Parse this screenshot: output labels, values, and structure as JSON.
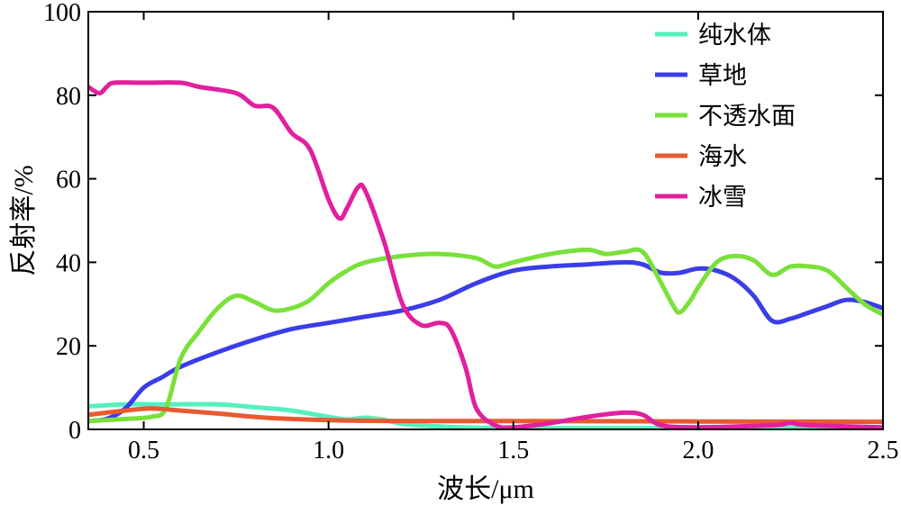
{
  "chart_data": {
    "type": "line",
    "title": "",
    "xlabel": "波长/μm",
    "ylabel": "反射率/%",
    "xlim": [
      0.35,
      2.5
    ],
    "ylim": [
      0,
      100
    ],
    "x_ticks": [
      0.5,
      1.0,
      1.5,
      2.0,
      2.5
    ],
    "x_tick_labels": [
      "0.5",
      "1.0",
      "1.5",
      "2.0",
      "2.5"
    ],
    "y_ticks": [
      0,
      20,
      40,
      60,
      80,
      100
    ],
    "y_tick_labels": [
      "0",
      "20",
      "40",
      "60",
      "80",
      "100"
    ],
    "grid": false,
    "legend_position": "top-right",
    "series": [
      {
        "name": "纯水体",
        "color": "#55f0c0",
        "points": [
          [
            0.35,
            5.5
          ],
          [
            0.45,
            6
          ],
          [
            0.55,
            6
          ],
          [
            0.7,
            6
          ],
          [
            0.8,
            5.3
          ],
          [
            0.9,
            4.5
          ],
          [
            1.0,
            3
          ],
          [
            1.05,
            2.4
          ],
          [
            1.1,
            2.8
          ],
          [
            1.15,
            2.3
          ],
          [
            1.2,
            1.3
          ],
          [
            1.3,
            0.7
          ],
          [
            1.4,
            0.4
          ],
          [
            1.6,
            0.3
          ],
          [
            2.0,
            0.3
          ],
          [
            2.5,
            0.3
          ]
        ]
      },
      {
        "name": "草地",
        "color": "#3a3de8",
        "points": [
          [
            0.35,
            2
          ],
          [
            0.4,
            2.5
          ],
          [
            0.45,
            5
          ],
          [
            0.5,
            10
          ],
          [
            0.55,
            12.5
          ],
          [
            0.6,
            15
          ],
          [
            0.7,
            18.5
          ],
          [
            0.8,
            21.5
          ],
          [
            0.9,
            24
          ],
          [
            1.0,
            25.5
          ],
          [
            1.1,
            27
          ],
          [
            1.2,
            28.5
          ],
          [
            1.3,
            31
          ],
          [
            1.4,
            35
          ],
          [
            1.5,
            38
          ],
          [
            1.6,
            39
          ],
          [
            1.7,
            39.5
          ],
          [
            1.8,
            40
          ],
          [
            1.85,
            39.5
          ],
          [
            1.9,
            37.5
          ],
          [
            1.95,
            37.5
          ],
          [
            2.0,
            38.5
          ],
          [
            2.05,
            38
          ],
          [
            2.1,
            36
          ],
          [
            2.15,
            32
          ],
          [
            2.2,
            26
          ],
          [
            2.25,
            26.5
          ],
          [
            2.3,
            28
          ],
          [
            2.35,
            29.5
          ],
          [
            2.4,
            31
          ],
          [
            2.45,
            30.5
          ],
          [
            2.5,
            29
          ]
        ]
      },
      {
        "name": "不透水面",
        "color": "#7ae03a",
        "points": [
          [
            0.35,
            2
          ],
          [
            0.45,
            2.5
          ],
          [
            0.52,
            3
          ],
          [
            0.56,
            5
          ],
          [
            0.6,
            17
          ],
          [
            0.65,
            23.5
          ],
          [
            0.7,
            29
          ],
          [
            0.75,
            32
          ],
          [
            0.8,
            30.5
          ],
          [
            0.85,
            28.5
          ],
          [
            0.9,
            29
          ],
          [
            0.95,
            31
          ],
          [
            1.0,
            35
          ],
          [
            1.05,
            38
          ],
          [
            1.1,
            40
          ],
          [
            1.2,
            41.5
          ],
          [
            1.3,
            42
          ],
          [
            1.4,
            41
          ],
          [
            1.45,
            39
          ],
          [
            1.5,
            40
          ],
          [
            1.6,
            42
          ],
          [
            1.7,
            43
          ],
          [
            1.75,
            42
          ],
          [
            1.8,
            42.5
          ],
          [
            1.85,
            42.5
          ],
          [
            1.9,
            35
          ],
          [
            1.93,
            30
          ],
          [
            1.95,
            28
          ],
          [
            1.98,
            31
          ],
          [
            2.0,
            34
          ],
          [
            2.05,
            40
          ],
          [
            2.1,
            41.5
          ],
          [
            2.15,
            40.5
          ],
          [
            2.2,
            37
          ],
          [
            2.25,
            39
          ],
          [
            2.3,
            39
          ],
          [
            2.35,
            38
          ],
          [
            2.4,
            34
          ],
          [
            2.45,
            30
          ],
          [
            2.5,
            27.5
          ]
        ]
      },
      {
        "name": "海水",
        "color": "#e85a30",
        "points": [
          [
            0.35,
            3.5
          ],
          [
            0.45,
            4.5
          ],
          [
            0.52,
            5
          ],
          [
            0.6,
            4.5
          ],
          [
            0.7,
            3.8
          ],
          [
            0.8,
            3
          ],
          [
            0.9,
            2.5
          ],
          [
            1.0,
            2.2
          ],
          [
            1.2,
            2
          ],
          [
            1.5,
            2
          ],
          [
            2.0,
            1.9
          ],
          [
            2.5,
            1.8
          ]
        ]
      },
      {
        "name": "冰雪",
        "color": "#e0209e",
        "points": [
          [
            0.35,
            82
          ],
          [
            0.38,
            80.5
          ],
          [
            0.4,
            82
          ],
          [
            0.42,
            83
          ],
          [
            0.5,
            83
          ],
          [
            0.6,
            83
          ],
          [
            0.65,
            82
          ],
          [
            0.75,
            80.5
          ],
          [
            0.8,
            77.5
          ],
          [
            0.85,
            77
          ],
          [
            0.9,
            71
          ],
          [
            0.95,
            67
          ],
          [
            1.0,
            55
          ],
          [
            1.03,
            50.5
          ],
          [
            1.05,
            53
          ],
          [
            1.08,
            58
          ],
          [
            1.1,
            57
          ],
          [
            1.15,
            45
          ],
          [
            1.2,
            30
          ],
          [
            1.25,
            25
          ],
          [
            1.3,
            25.5
          ],
          [
            1.33,
            24
          ],
          [
            1.37,
            15
          ],
          [
            1.4,
            5
          ],
          [
            1.45,
            1
          ],
          [
            1.5,
            0.5
          ],
          [
            1.6,
            1.5
          ],
          [
            1.7,
            3
          ],
          [
            1.8,
            4
          ],
          [
            1.85,
            3.5
          ],
          [
            1.9,
            1
          ],
          [
            2.0,
            0.5
          ],
          [
            2.2,
            1
          ],
          [
            2.25,
            1.5
          ],
          [
            2.3,
            1
          ],
          [
            2.5,
            0.5
          ]
        ]
      }
    ]
  }
}
